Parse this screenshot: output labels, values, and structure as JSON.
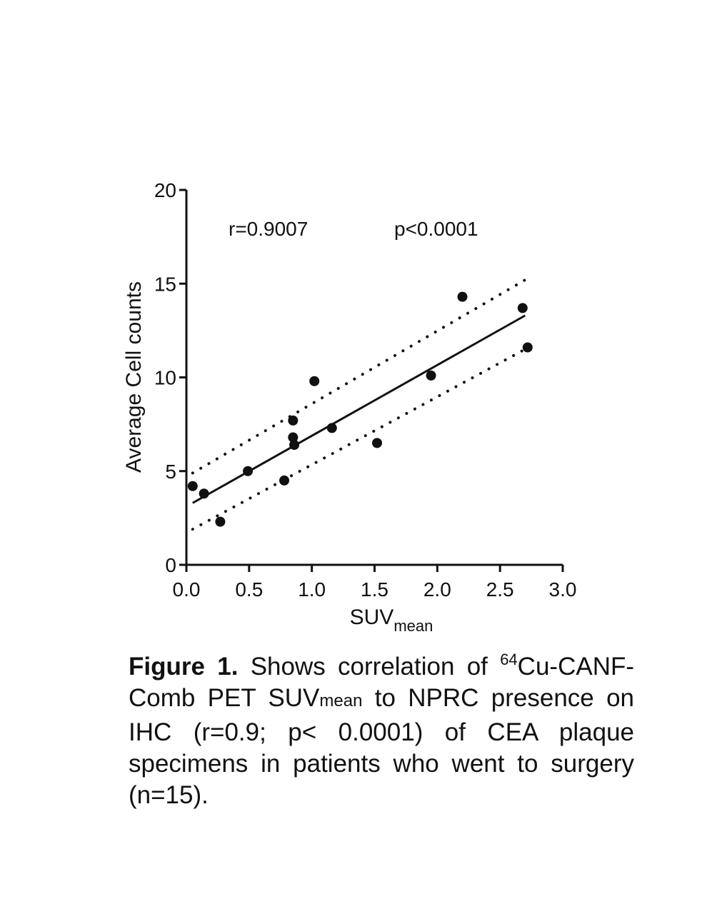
{
  "chart_data": {
    "type": "scatter",
    "xlabel_main": "SUV",
    "xlabel_sub": "mean",
    "ylabel": "Average Cell counts",
    "xlim": [
      0,
      3.0
    ],
    "ylim": [
      0,
      20
    ],
    "x_ticks": [
      "0.0",
      "0.5",
      "1.0",
      "1.5",
      "2.0",
      "2.5",
      "3.0"
    ],
    "x_tick_values": [
      0,
      0.5,
      1.0,
      1.5,
      2.0,
      2.5,
      3.0
    ],
    "y_ticks": [
      "0",
      "5",
      "10",
      "15",
      "20"
    ],
    "y_tick_values": [
      0,
      5,
      10,
      15,
      20
    ],
    "annotations": {
      "r": "r=0.9007",
      "p": "p<0.0001"
    },
    "points": [
      {
        "x": 0.05,
        "y": 4.2
      },
      {
        "x": 0.14,
        "y": 3.8
      },
      {
        "x": 0.27,
        "y": 2.3
      },
      {
        "x": 0.49,
        "y": 5.0
      },
      {
        "x": 0.78,
        "y": 4.5
      },
      {
        "x": 0.85,
        "y": 7.7
      },
      {
        "x": 0.85,
        "y": 6.8
      },
      {
        "x": 0.86,
        "y": 6.4
      },
      {
        "x": 1.02,
        "y": 9.8
      },
      {
        "x": 1.16,
        "y": 7.3
      },
      {
        "x": 1.52,
        "y": 6.5
      },
      {
        "x": 1.95,
        "y": 10.1
      },
      {
        "x": 2.2,
        "y": 14.3
      },
      {
        "x": 2.68,
        "y": 13.7
      },
      {
        "x": 2.72,
        "y": 11.6
      }
    ],
    "fit_line": {
      "x": [
        0.05,
        2.7
      ],
      "y": [
        3.3,
        13.3
      ]
    },
    "ci_upper": {
      "x": [
        0.05,
        2.7
      ],
      "y": [
        4.9,
        15.2
      ]
    },
    "ci_lower": {
      "x": [
        0.05,
        2.7
      ],
      "y": [
        1.9,
        11.5
      ]
    },
    "colors": {
      "points": "#111111",
      "lines": "#111111"
    }
  },
  "caption": {
    "label": "Figure 1.",
    "part1": " Shows correlation of ",
    "superscript": "64",
    "part2": "Cu-CANF-Comb PET SUV",
    "subscript": "mean",
    "part3": " to NPRC presence on IHC (r=0.9; p< 0.0001) of CEA plaque specimens in patients who went to surgery (n=15)."
  }
}
